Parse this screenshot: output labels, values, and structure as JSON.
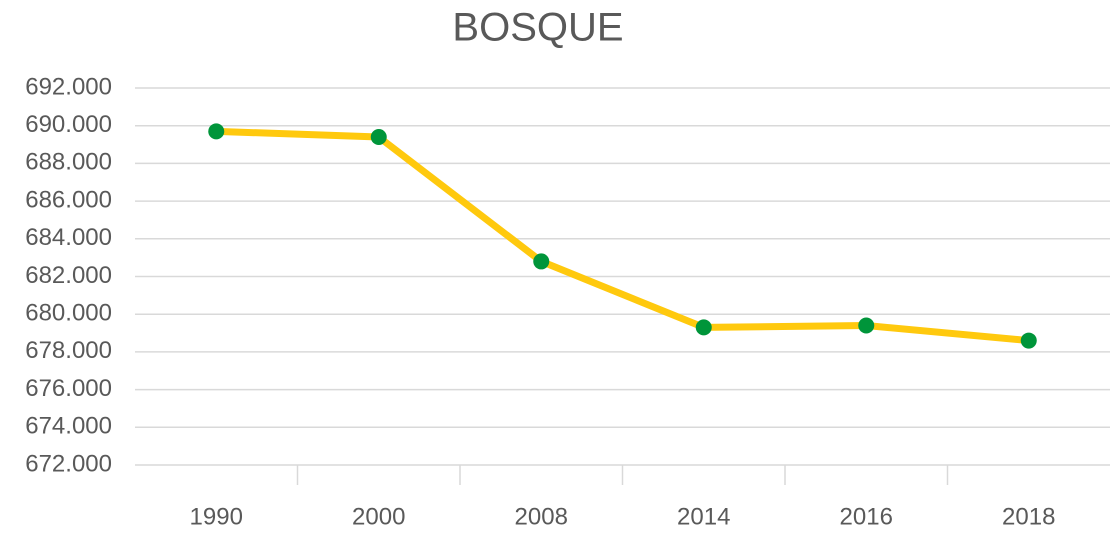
{
  "chart_data": {
    "type": "line",
    "title": "BOSQUE",
    "categories": [
      "1990",
      "2000",
      "2008",
      "2014",
      "2016",
      "2018"
    ],
    "series": [
      {
        "name": "BOSQUE",
        "color": "#ffc90e",
        "marker_color": "#00953a",
        "values": [
          689700,
          689400,
          682800,
          679300,
          679400,
          678600
        ]
      }
    ],
    "ylim": [
      672000,
      692000
    ],
    "yticks": [
      {
        "value": 672000,
        "label": "672.000"
      },
      {
        "value": 674000,
        "label": "674.000"
      },
      {
        "value": 676000,
        "label": "676.000"
      },
      {
        "value": 678000,
        "label": "678.000"
      },
      {
        "value": 680000,
        "label": "680.000"
      },
      {
        "value": 682000,
        "label": "682.000"
      },
      {
        "value": 684000,
        "label": "684.000"
      },
      {
        "value": 686000,
        "label": "686.000"
      },
      {
        "value": 688000,
        "label": "688.000"
      },
      {
        "value": 690000,
        "label": "690.000"
      },
      {
        "value": 692000,
        "label": "692.000"
      }
    ],
    "grid": true
  }
}
